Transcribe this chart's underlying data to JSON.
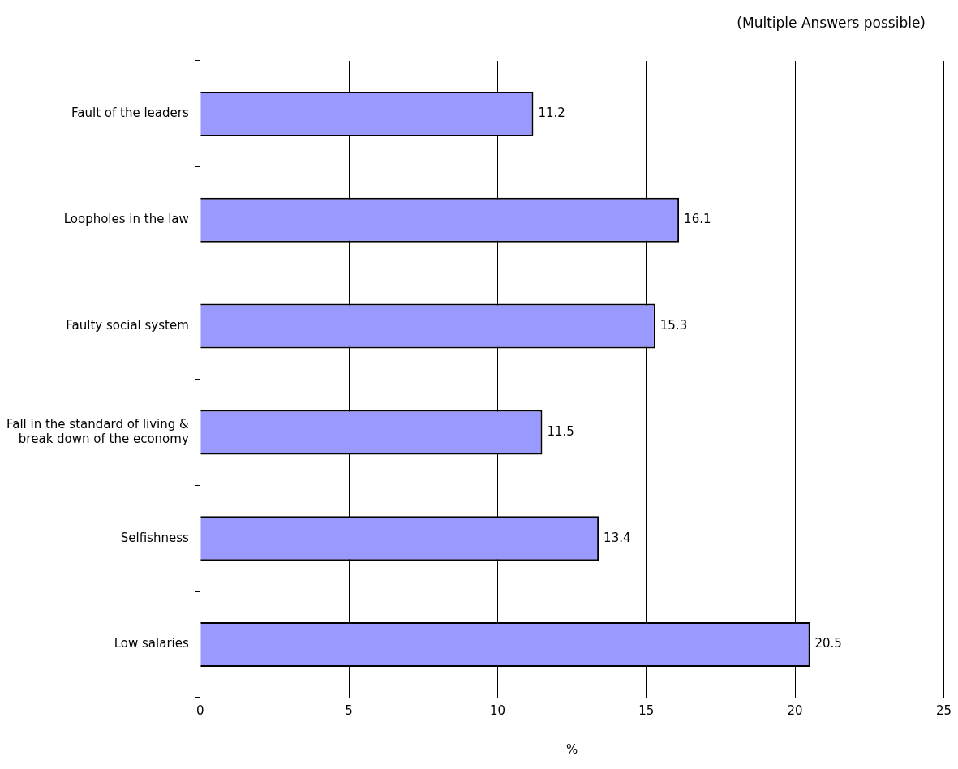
{
  "chart_data": {
    "type": "bar",
    "orientation": "horizontal",
    "annotations": [
      "(Multiple Answers possible)"
    ],
    "xlabel": "%",
    "categories": [
      "Fault of the leaders",
      "Loopholes in the law",
      "Faulty social system",
      "Fall in the standard of living & break down of the economy",
      "Selfishness",
      "Low salaries"
    ],
    "values": [
      11.2,
      16.1,
      15.3,
      11.5,
      13.4,
      20.5
    ],
    "color": "#9999ff",
    "xlim": [
      0,
      25
    ],
    "xticks": [
      0,
      5,
      10,
      15,
      20,
      25
    ],
    "grid": "x",
    "data_labels": true,
    "legend": false
  }
}
